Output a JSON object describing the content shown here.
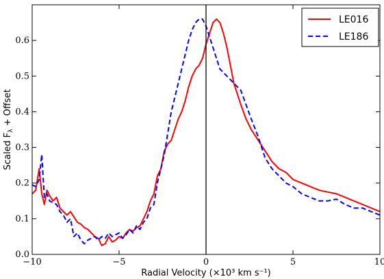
{
  "chart_data": {
    "type": "line",
    "xlabel": "Radial Velocity (×10³ km s⁻¹)",
    "ylabel": "Scaled F",
    "ylabel_sub": "λ",
    "ylabel_suffix": " + Offset",
    "xlim": [
      -10,
      10
    ],
    "ylim": [
      0.0,
      0.7
    ],
    "xticks": [
      -10,
      -5,
      0,
      5,
      10
    ],
    "xtick_labels": [
      "−10",
      "−5",
      "0",
      "5",
      "10"
    ],
    "yticks": [
      0.0,
      0.1,
      0.2,
      0.3,
      0.4,
      0.5,
      0.6
    ],
    "ytick_labels": [
      "0.0",
      "0.1",
      "0.2",
      "0.3",
      "0.4",
      "0.5",
      "0.6"
    ],
    "grid": false,
    "legend_position": "top-right",
    "vline_x": 0,
    "series": [
      {
        "name": "LE016",
        "color": "#ff0000",
        "dash": "solid",
        "x": [
          -10,
          -9.8,
          -9.6,
          -9.45,
          -9.3,
          -9.15,
          -9.0,
          -8.8,
          -8.6,
          -8.4,
          -8.2,
          -8.0,
          -7.8,
          -7.6,
          -7.4,
          -7.2,
          -7.0,
          -6.8,
          -6.6,
          -6.4,
          -6.2,
          -6.0,
          -5.8,
          -5.6,
          -5.4,
          -5.2,
          -5.0,
          -4.8,
          -4.6,
          -4.4,
          -4.2,
          -4.0,
          -3.8,
          -3.6,
          -3.4,
          -3.2,
          -3.0,
          -2.8,
          -2.6,
          -2.4,
          -2.2,
          -2.0,
          -1.8,
          -1.6,
          -1.4,
          -1.2,
          -1.0,
          -0.8,
          -0.6,
          -0.4,
          -0.2,
          0.0,
          0.2,
          0.4,
          0.6,
          0.8,
          1.0,
          1.2,
          1.4,
          1.6,
          1.8,
          2.0,
          2.3,
          2.6,
          3.0,
          3.4,
          3.8,
          4.2,
          4.6,
          5.0,
          5.5,
          6.0,
          6.5,
          7.0,
          7.5,
          8.0,
          8.5,
          9.0,
          9.5,
          10.0
        ],
        "y": [
          0.17,
          0.18,
          0.24,
          0.17,
          0.14,
          0.18,
          0.165,
          0.15,
          0.16,
          0.13,
          0.12,
          0.11,
          0.12,
          0.105,
          0.09,
          0.085,
          0.075,
          0.07,
          0.06,
          0.05,
          0.045,
          0.025,
          0.03,
          0.05,
          0.035,
          0.04,
          0.05,
          0.045,
          0.06,
          0.07,
          0.065,
          0.075,
          0.08,
          0.1,
          0.12,
          0.15,
          0.17,
          0.22,
          0.24,
          0.29,
          0.31,
          0.32,
          0.35,
          0.38,
          0.4,
          0.43,
          0.47,
          0.5,
          0.52,
          0.53,
          0.55,
          0.59,
          0.62,
          0.65,
          0.66,
          0.65,
          0.62,
          0.58,
          0.53,
          0.48,
          0.45,
          0.42,
          0.38,
          0.35,
          0.32,
          0.29,
          0.26,
          0.24,
          0.23,
          0.21,
          0.2,
          0.19,
          0.18,
          0.175,
          0.17,
          0.16,
          0.15,
          0.14,
          0.13,
          0.12
        ]
      },
      {
        "name": "LE186",
        "color": "#0000ff",
        "dash": "dashed",
        "x": [
          -10,
          -9.8,
          -9.6,
          -9.45,
          -9.3,
          -9.15,
          -9.0,
          -8.8,
          -8.6,
          -8.4,
          -8.2,
          -8.0,
          -7.8,
          -7.6,
          -7.4,
          -7.2,
          -7.0,
          -6.8,
          -6.6,
          -6.4,
          -6.2,
          -6.0,
          -5.8,
          -5.6,
          -5.4,
          -5.2,
          -5.0,
          -4.8,
          -4.6,
          -4.4,
          -4.2,
          -4.0,
          -3.8,
          -3.6,
          -3.4,
          -3.2,
          -3.0,
          -2.8,
          -2.6,
          -2.4,
          -2.2,
          -2.0,
          -1.8,
          -1.6,
          -1.4,
          -1.2,
          -1.0,
          -0.8,
          -0.6,
          -0.4,
          -0.2,
          0.0,
          0.2,
          0.4,
          0.6,
          0.8,
          1.0,
          1.2,
          1.4,
          1.6,
          1.8,
          2.0,
          2.3,
          2.6,
          3.0,
          3.4,
          3.8,
          4.2,
          4.6,
          5.0,
          5.5,
          6.0,
          6.5,
          7.0,
          7.5,
          8.0,
          8.5,
          9.0,
          9.5,
          10.0
        ],
        "y": [
          0.195,
          0.19,
          0.21,
          0.28,
          0.16,
          0.17,
          0.15,
          0.145,
          0.14,
          0.12,
          0.11,
          0.09,
          0.1,
          0.05,
          0.06,
          0.04,
          0.03,
          0.04,
          0.045,
          0.05,
          0.04,
          0.05,
          0.045,
          0.06,
          0.05,
          0.055,
          0.06,
          0.045,
          0.055,
          0.07,
          0.06,
          0.08,
          0.07,
          0.09,
          0.1,
          0.13,
          0.14,
          0.2,
          0.24,
          0.28,
          0.34,
          0.4,
          0.44,
          0.48,
          0.52,
          0.56,
          0.6,
          0.63,
          0.65,
          0.66,
          0.66,
          0.64,
          0.61,
          0.58,
          0.55,
          0.52,
          0.51,
          0.5,
          0.49,
          0.48,
          0.47,
          0.46,
          0.42,
          0.38,
          0.33,
          0.27,
          0.24,
          0.22,
          0.2,
          0.19,
          0.17,
          0.16,
          0.15,
          0.15,
          0.155,
          0.14,
          0.13,
          0.13,
          0.12,
          0.11
        ]
      }
    ]
  }
}
